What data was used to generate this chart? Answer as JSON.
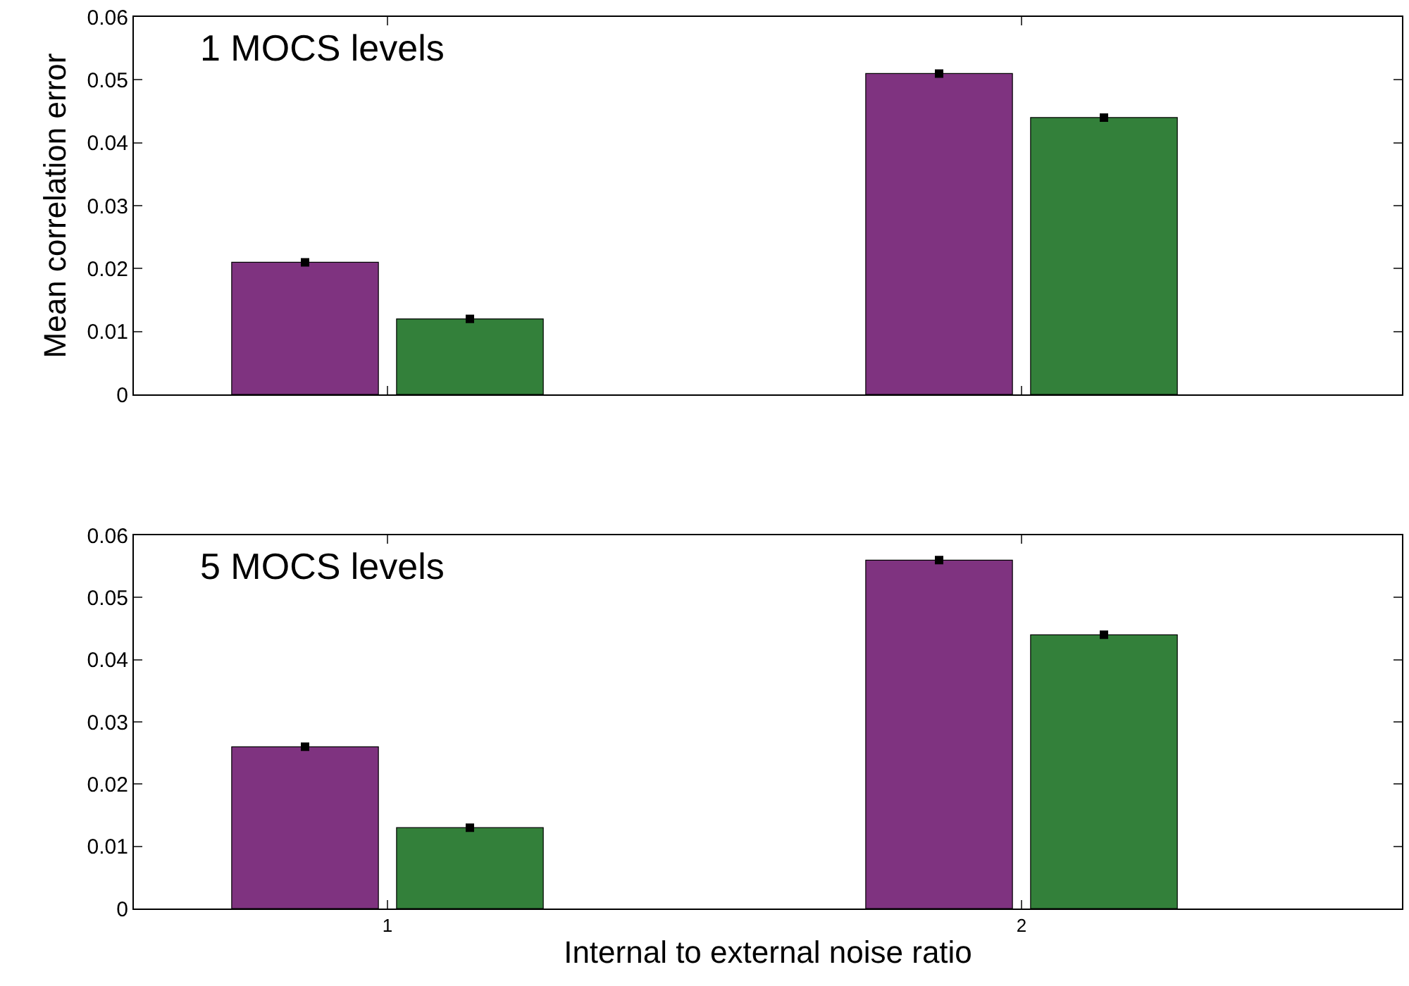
{
  "chart_data": [
    {
      "type": "bar",
      "categories": [
        "1",
        "2"
      ],
      "ylabel": "Mean correlation error",
      "annotations": [
        "1 MOCS levels"
      ],
      "ylim": [
        0,
        0.06
      ],
      "yticks": [
        0,
        0.01,
        0.02,
        0.03,
        0.04,
        0.05,
        0.06
      ],
      "tick_labels": "y",
      "grid": false,
      "series": [
        {
          "color": "#7f3380",
          "values": [
            0.021,
            0.051
          ],
          "errors": [
            0,
            0
          ]
        },
        {
          "color": "#33803a",
          "values": [
            0.012,
            0.044
          ],
          "errors": [
            0,
            0
          ]
        }
      ]
    },
    {
      "type": "bar",
      "categories": [
        "1",
        "2"
      ],
      "xlabel": "Internal to external noise ratio",
      "annotations": [
        "5 MOCS levels"
      ],
      "ylim": [
        0,
        0.06
      ],
      "yticks": [
        0,
        0.01,
        0.02,
        0.03,
        0.04,
        0.05,
        0.06
      ],
      "grid": false,
      "series": [
        {
          "color": "#7f3380",
          "values": [
            0.026,
            0.056
          ],
          "errors": [
            0,
            0
          ]
        },
        {
          "color": "#33803a",
          "values": [
            0.013,
            0.044
          ],
          "errors": [
            0,
            0
          ]
        }
      ]
    }
  ]
}
